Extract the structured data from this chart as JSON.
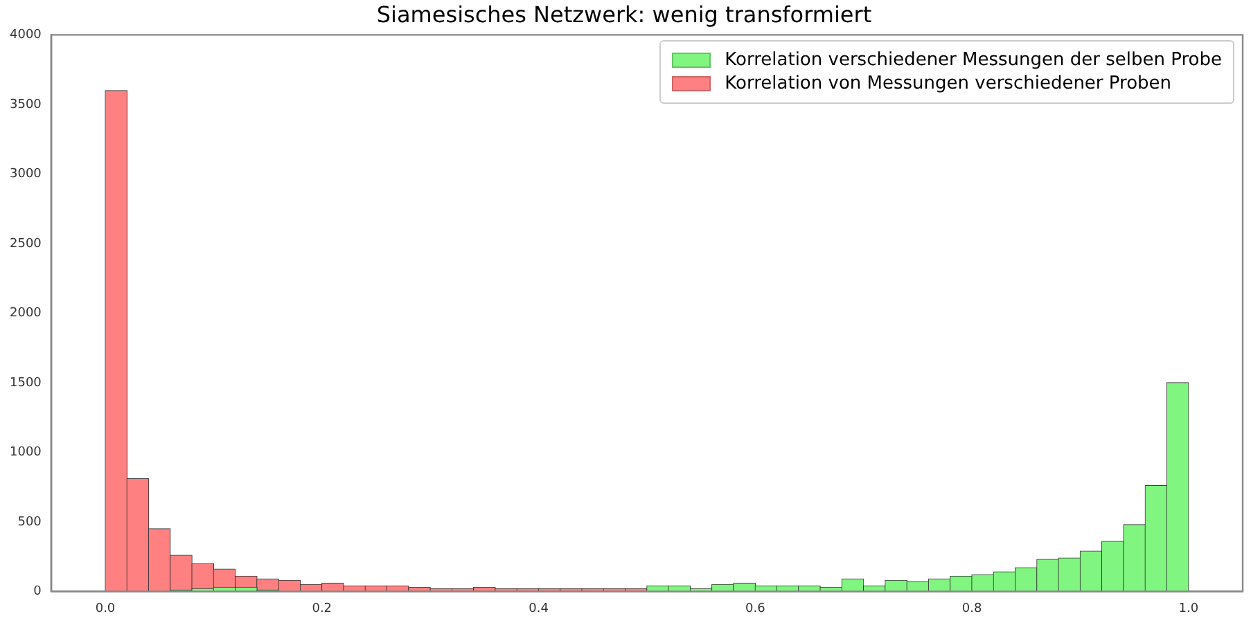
{
  "chart_data": {
    "type": "histogram",
    "title": "Siamesisches Netzwerk: wenig transformiert",
    "bins": [
      0,
      0.02,
      0.04,
      0.06,
      0.08,
      0.1,
      0.12,
      0.14,
      0.16,
      0.18,
      0.2,
      0.22,
      0.24,
      0.26,
      0.28,
      0.3,
      0.32,
      0.34,
      0.36,
      0.38,
      0.4,
      0.42,
      0.44,
      0.46,
      0.48,
      0.5,
      0.52,
      0.54,
      0.56,
      0.58,
      0.6,
      0.62,
      0.64,
      0.66,
      0.68,
      0.7,
      0.72,
      0.74,
      0.76,
      0.78,
      0.8,
      0.82,
      0.84,
      0.86,
      0.88,
      0.9,
      0.92,
      0.94,
      0.96,
      0.98,
      1.0
    ],
    "series": [
      {
        "name": "Korrelation verschiedener Messungen der selben Probe",
        "color": "#80f580",
        "values": [
          0,
          0,
          0,
          10,
          20,
          30,
          30,
          10,
          0,
          0,
          0,
          0,
          0,
          0,
          0,
          0,
          0,
          0,
          0,
          0,
          0,
          0,
          0,
          0,
          0,
          40,
          40,
          20,
          50,
          60,
          40,
          40,
          40,
          30,
          90,
          40,
          80,
          70,
          90,
          110,
          120,
          140,
          170,
          230,
          240,
          290,
          360,
          480,
          760,
          1500
        ]
      },
      {
        "name": "Korrelation von Messungen verschiedener Proben",
        "color": "#ff8080",
        "values": [
          3600,
          810,
          450,
          260,
          200,
          160,
          110,
          90,
          80,
          50,
          60,
          40,
          40,
          40,
          30,
          20,
          20,
          30,
          20,
          20,
          20,
          20,
          20,
          20,
          20,
          0,
          0,
          0,
          0,
          0,
          0,
          0,
          0,
          0,
          0,
          0,
          0,
          0,
          0,
          0,
          0,
          0,
          0,
          0,
          0,
          0,
          0,
          0,
          0,
          0
        ]
      }
    ],
    "xlim": [
      -0.05,
      1.05
    ],
    "xticks": [
      {
        "value": 0,
        "label": "0.0"
      },
      {
        "value": 0.2,
        "label": "0.2"
      },
      {
        "value": 0.4,
        "label": "0.4"
      },
      {
        "value": 0.6,
        "label": "0.6"
      },
      {
        "value": 0.8,
        "label": "0.8"
      },
      {
        "value": 1,
        "label": "1.0"
      }
    ],
    "ylim": [
      0,
      4000
    ],
    "yticks": [
      0,
      500,
      1000,
      1500,
      2000,
      2500,
      3000,
      3500,
      4000
    ],
    "grid": false,
    "legend": "top right"
  }
}
